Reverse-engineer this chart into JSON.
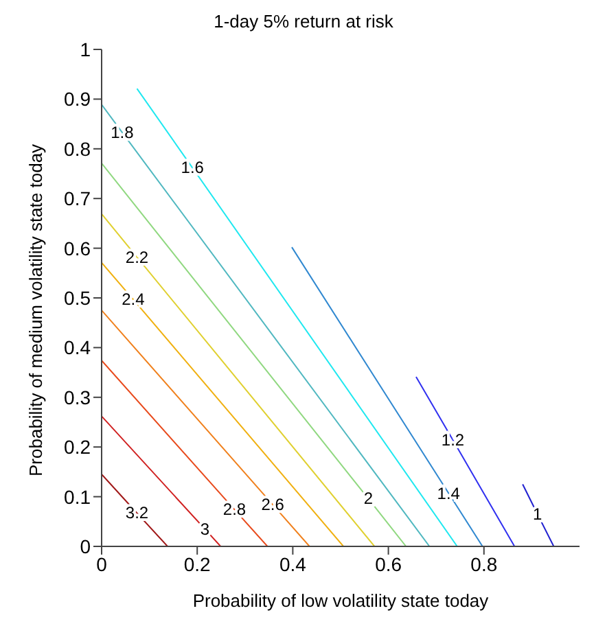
{
  "chart_data": {
    "type": "line",
    "title": "1-day 5% return at risk",
    "xlabel": "Probability of low volatility state today",
    "ylabel": "Probability of medium volatility state today",
    "xlim": [
      0,
      1
    ],
    "xticks": [
      0,
      0.2,
      0.4,
      0.6,
      0.8
    ],
    "ylim": [
      0,
      1
    ],
    "yticks": [
      0,
      0.1,
      0.2,
      0.3,
      0.4,
      0.5,
      0.6,
      0.7,
      0.8,
      0.9,
      1
    ],
    "grid": false,
    "legend": false,
    "marker": "none",
    "line_style": "solid",
    "series": [
      {
        "name": "3.2",
        "color": "#a01818",
        "x": [
          0,
          0.074,
          0.138
        ],
        "values": [
          0.145,
          0.067,
          0
        ]
      },
      {
        "name": "3",
        "color": "#d02020",
        "x": [
          0,
          0.216,
          0.249
        ],
        "values": [
          0.262,
          0.035,
          0
        ]
      },
      {
        "name": "2.8",
        "color": "#e84a1c",
        "x": [
          0,
          0.278,
          0.347
        ],
        "values": [
          0.374,
          0.074,
          0
        ]
      },
      {
        "name": "2.6",
        "color": "#f0801c",
        "x": [
          0,
          0.358,
          0.435
        ],
        "values": [
          0.475,
          0.084,
          0
        ]
      },
      {
        "name": "2.4",
        "color": "#f0b010",
        "x": [
          0,
          0.066,
          0.506
        ],
        "values": [
          0.571,
          0.497,
          0
        ]
      },
      {
        "name": "2.2",
        "color": "#e0d030",
        "x": [
          0,
          0.074,
          0.571
        ],
        "values": [
          0.669,
          0.582,
          0
        ]
      },
      {
        "name": "2",
        "color": "#90d880",
        "x": [
          0,
          0.558,
          0.637
        ],
        "values": [
          0.771,
          0.096,
          0
        ]
      },
      {
        "name": "1.8",
        "color": "#50b8c0",
        "x": [
          0,
          0.043,
          0.686
        ],
        "values": [
          0.889,
          0.833,
          0
        ]
      },
      {
        "name": "1.6",
        "color": "#20e8f0",
        "x": [
          0.074,
          0.19,
          0.744
        ],
        "values": [
          0.921,
          0.762,
          0
        ]
      },
      {
        "name": "1.4",
        "color": "#3088d0",
        "x": [
          0.398,
          0.726,
          0.797
        ],
        "values": [
          0.602,
          0.107,
          0
        ]
      },
      {
        "name": "1.2",
        "color": "#3030f0",
        "x": [
          0.658,
          0.735,
          0.864
        ],
        "values": [
          0.341,
          0.214,
          0
        ]
      },
      {
        "name": "1",
        "color": "#2020d0",
        "x": [
          0.881,
          0.912,
          0.946
        ],
        "values": [
          0.125,
          0.065,
          0
        ]
      }
    ]
  }
}
